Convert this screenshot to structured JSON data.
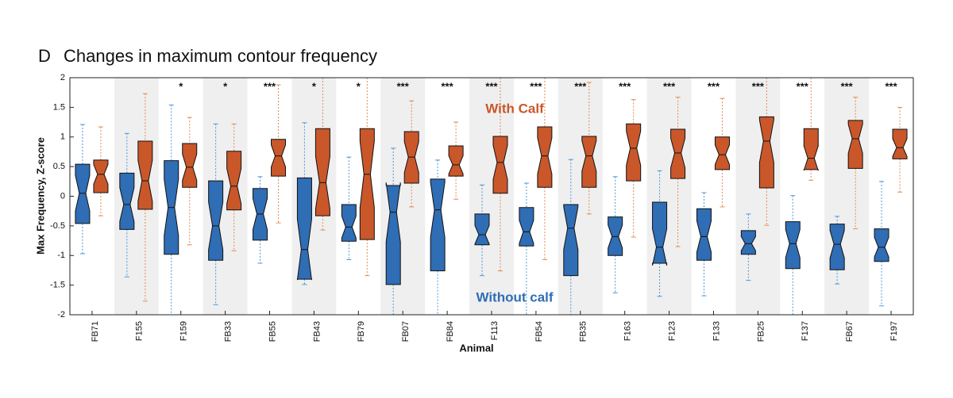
{
  "chart_data": {
    "type": "boxplot",
    "panel_label": "D",
    "title": "Changes in maximum contour frequency",
    "x_label": "Animal",
    "y_label": "Max Frequency, Z-score",
    "ylim": [
      -2,
      2
    ],
    "yticks": [
      -2,
      -1.5,
      -1,
      -0.5,
      0,
      0.5,
      1,
      1.5,
      2
    ],
    "categories": [
      "FB71",
      "F155",
      "F159",
      "FB33",
      "FB55",
      "FB43",
      "FB79",
      "FB07",
      "FB84",
      "F113",
      "FB54",
      "FB35",
      "F163",
      "F123",
      "F133",
      "FB25",
      "F137",
      "FB67",
      "F197"
    ],
    "significance": [
      null,
      null,
      "*",
      "*",
      "***",
      "*",
      "*",
      "***",
      "***",
      "***",
      "***",
      "***",
      "***",
      "***",
      "***",
      "***",
      "***",
      "***",
      "***"
    ],
    "shaded_bands": true,
    "series": [
      {
        "name": "Without calf",
        "color": "#2f6db5",
        "whisker_color": "#4a96dc",
        "high": [
          1.21,
          1.06,
          1.54,
          1.22,
          0.33,
          1.24,
          0.66,
          0.81,
          0.61,
          0.19,
          0.22,
          0.62,
          0.33,
          0.43,
          0.06,
          -0.3,
          0.01,
          -0.34,
          0.25
        ],
        "q3": [
          0.54,
          0.39,
          0.6,
          0.26,
          0.13,
          0.31,
          -0.14,
          0.18,
          0.29,
          -0.3,
          -0.19,
          -0.14,
          -0.35,
          -0.1,
          -0.21,
          -0.58,
          -0.43,
          -0.47,
          -0.55
        ],
        "median": [
          0.05,
          -0.14,
          -0.19,
          -0.5,
          -0.3,
          -0.9,
          -0.52,
          -0.27,
          -0.23,
          -0.65,
          -0.6,
          -0.54,
          -0.68,
          -0.86,
          -0.68,
          -0.8,
          -0.8,
          -0.81,
          -0.86
        ],
        "q1": [
          -0.46,
          -0.56,
          -0.98,
          -1.08,
          -0.74,
          -1.4,
          -0.76,
          -1.49,
          -1.26,
          -0.82,
          -0.84,
          -1.34,
          -1.0,
          -1.13,
          -1.08,
          -0.98,
          -1.22,
          -1.24,
          -1.1
        ],
        "low": [
          -0.97,
          -1.36,
          -2,
          -1.83,
          -1.13,
          -1.49,
          -1.07,
          -2,
          -2,
          -1.34,
          -2,
          -2,
          -1.63,
          -1.69,
          -1.68,
          -1.42,
          -2,
          -1.48,
          -1.85
        ]
      },
      {
        "name": "With Calf",
        "color": "#c9572a",
        "whisker_color": "#e28a52",
        "high": [
          1.17,
          1.73,
          1.33,
          1.22,
          1.88,
          2,
          2,
          1.61,
          1.25,
          2,
          2,
          1.92,
          1.63,
          1.67,
          1.65,
          2,
          2,
          1.67,
          1.5
        ],
        "q3": [
          0.61,
          0.93,
          0.89,
          0.76,
          0.96,
          1.14,
          1.14,
          1.09,
          0.85,
          1.01,
          1.17,
          1.01,
          1.22,
          1.13,
          1.0,
          1.34,
          1.14,
          1.28,
          1.13
        ],
        "median": [
          0.37,
          0.26,
          0.49,
          0.17,
          0.68,
          0.23,
          0.37,
          0.66,
          0.53,
          0.57,
          0.68,
          0.68,
          0.81,
          0.73,
          0.7,
          0.93,
          0.64,
          0.97,
          0.82
        ],
        "q1": [
          0.06,
          -0.22,
          0.15,
          -0.23,
          0.34,
          -0.33,
          -0.73,
          0.22,
          0.34,
          0.05,
          0.15,
          0.15,
          0.26,
          0.3,
          0.45,
          0.14,
          0.45,
          0.47,
          0.63
        ],
        "low": [
          -0.33,
          -1.77,
          -0.82,
          -0.92,
          -0.45,
          -0.57,
          -1.34,
          -0.18,
          -0.05,
          -1.26,
          -1.07,
          -0.3,
          -0.69,
          -0.85,
          -0.18,
          -0.49,
          0.27,
          -0.55,
          0.07
        ]
      }
    ]
  }
}
